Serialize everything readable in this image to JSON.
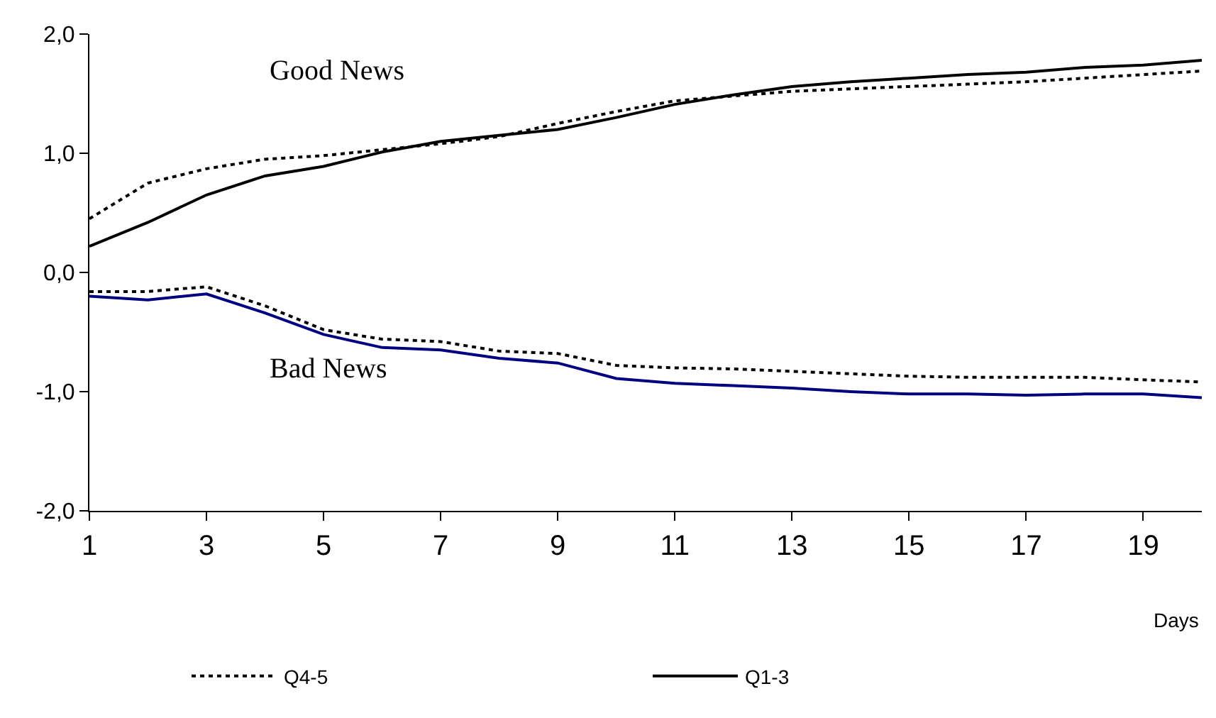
{
  "chart_data": {
    "type": "line",
    "xlabel": "Days",
    "x": [
      1,
      2,
      3,
      4,
      5,
      6,
      7,
      8,
      9,
      10,
      11,
      12,
      13,
      14,
      15,
      16,
      17,
      18,
      19,
      20
    ],
    "xlim": [
      1,
      20
    ],
    "xticks": [
      1,
      3,
      5,
      7,
      9,
      11,
      13,
      15,
      17,
      19
    ],
    "ylim": [
      -2,
      2
    ],
    "yticks": [
      {
        "value": -2,
        "label": "-2,0"
      },
      {
        "value": -1,
        "label": "-1,0"
      },
      {
        "value": 0,
        "label": "0,0"
      },
      {
        "value": 1,
        "label": "1,0"
      },
      {
        "value": 2,
        "label": "2,0"
      }
    ],
    "series": [
      {
        "name": "Q4-5",
        "color": "#000000",
        "line_style": "dotted",
        "values": [
          0.45,
          0.75,
          0.87,
          0.95,
          0.98,
          1.03,
          1.08,
          1.14,
          1.25,
          1.35,
          1.44,
          1.48,
          1.52,
          1.54,
          1.56,
          1.58,
          1.6,
          1.63,
          1.66,
          1.69
        ]
      },
      {
        "name": "Q1-3",
        "color": "#000000",
        "line_style": "solid",
        "values": [
          0.22,
          0.42,
          0.65,
          0.81,
          0.89,
          1.01,
          1.1,
          1.15,
          1.2,
          1.3,
          1.41,
          1.49,
          1.56,
          1.6,
          1.63,
          1.66,
          1.68,
          1.72,
          1.74,
          1.78
        ]
      },
      {
        "color": "#000000",
        "line_style": "dotted",
        "values": [
          -0.16,
          -0.16,
          -0.12,
          -0.28,
          -0.48,
          -0.56,
          -0.58,
          -0.66,
          -0.68,
          -0.78,
          -0.8,
          -0.81,
          -0.83,
          -0.85,
          -0.87,
          -0.88,
          -0.88,
          -0.88,
          -0.9,
          -0.92
        ]
      },
      {
        "color": "#000080",
        "line_style": "solid",
        "values": [
          -0.2,
          -0.23,
          -0.18,
          -0.34,
          -0.52,
          -0.63,
          -0.65,
          -0.72,
          -0.76,
          -0.89,
          -0.93,
          -0.95,
          -0.97,
          -1.0,
          -1.02,
          -1.02,
          -1.03,
          -1.02,
          -1.02,
          -1.05
        ]
      }
    ],
    "annotations": [
      "Good News",
      "Bad News"
    ],
    "legend": "bottom",
    "grid": false,
    "marker": "none"
  }
}
